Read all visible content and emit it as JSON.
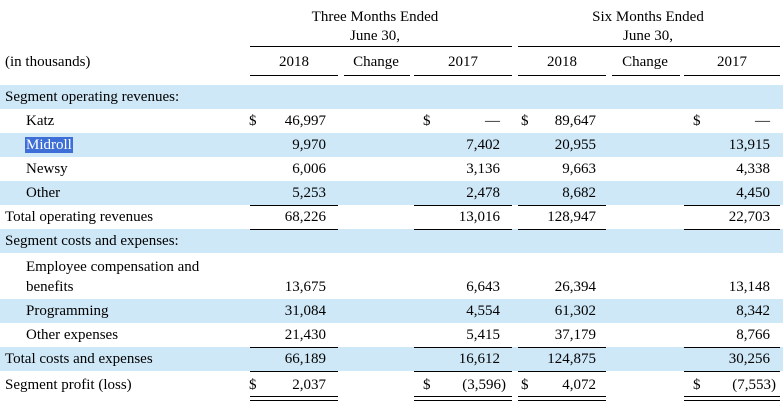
{
  "header": {
    "group1_line1": "Three Months Ended",
    "group1_line2": "June 30,",
    "group2_line1": "Six Months Ended",
    "group2_line2": "June 30,",
    "unit_label": "(in thousands)",
    "columns": [
      "2018",
      "Change",
      "2017",
      "2018",
      "Change",
      "2017"
    ]
  },
  "rows": [
    {
      "label": "Segment operating revenues:"
    },
    {
      "label": "Katz",
      "cells": [
        "46,997",
        "",
        "—",
        "89,647",
        "",
        "—"
      ],
      "dollar": [
        "$",
        "",
        "$",
        "$",
        "",
        "$"
      ]
    },
    {
      "label": "Midroll",
      "cells": [
        "9,970",
        "",
        "7,402",
        "20,955",
        "",
        "13,915"
      ]
    },
    {
      "label": "Newsy",
      "cells": [
        "6,006",
        "",
        "3,136",
        "9,663",
        "",
        "4,338"
      ]
    },
    {
      "label": "Other",
      "cells": [
        "5,253",
        "",
        "2,478",
        "8,682",
        "",
        "4,450"
      ]
    },
    {
      "label": "Total operating revenues",
      "cells": [
        "68,226",
        "",
        "13,016",
        "128,947",
        "",
        "22,703"
      ]
    },
    {
      "label": "Segment costs and expenses:"
    },
    {
      "label_line1": "Employee compensation and",
      "label": "benefits",
      "cells": [
        "13,675",
        "",
        "6,643",
        "26,394",
        "",
        "13,148"
      ]
    },
    {
      "label": "Programming",
      "cells": [
        "31,084",
        "",
        "4,554",
        "61,302",
        "",
        "8,342"
      ]
    },
    {
      "label": "Other expenses",
      "cells": [
        "21,430",
        "",
        "5,415",
        "37,179",
        "",
        "8,766"
      ]
    },
    {
      "label": "Total costs and expenses",
      "cells": [
        "66,189",
        "",
        "16,612",
        "124,875",
        "",
        "30,256"
      ]
    },
    {
      "label": "Segment profit (loss)",
      "cells": [
        "2,037",
        "",
        "(3,596)",
        "4,072",
        "",
        "(7,553)"
      ],
      "dollar": [
        "$",
        "",
        "$",
        "$",
        "",
        "$"
      ]
    }
  ]
}
